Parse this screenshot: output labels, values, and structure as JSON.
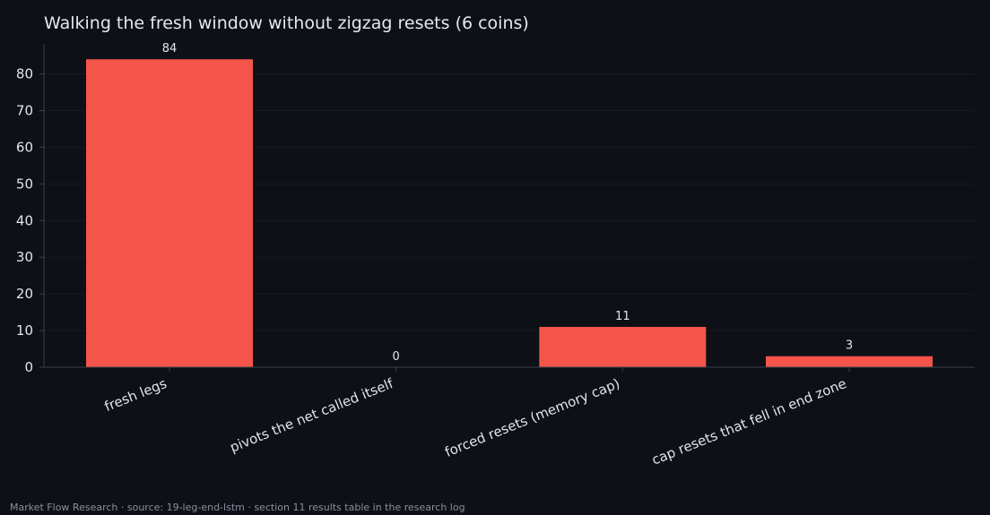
{
  "chart_data": {
    "type": "bar",
    "title": "Walking the fresh window without zigzag resets (6 coins)",
    "xlabel": "",
    "ylabel": "",
    "categories": [
      "fresh legs",
      "pivots the net called itself",
      "forced resets (memory cap)",
      "cap resets that fell in end zone"
    ],
    "values": [
      84,
      0,
      11,
      3
    ],
    "data_labels": [
      "84",
      "0",
      "11",
      "3"
    ],
    "y_ticks": [
      0,
      10,
      20,
      30,
      40,
      50,
      60,
      70,
      80
    ],
    "ylim": [
      0,
      88.2
    ],
    "grid": "horizontal, faint",
    "legend": "none"
  },
  "colors": {
    "background": "#0d1017",
    "bar": "#f5544b",
    "text": "#e2e5ea",
    "axis": "#3a3f4a",
    "grid": "#161a22",
    "footer": "#8a8f99"
  },
  "footer": "Market Flow Research · source: 19-leg-end-lstm · section 11 results table in the research log"
}
